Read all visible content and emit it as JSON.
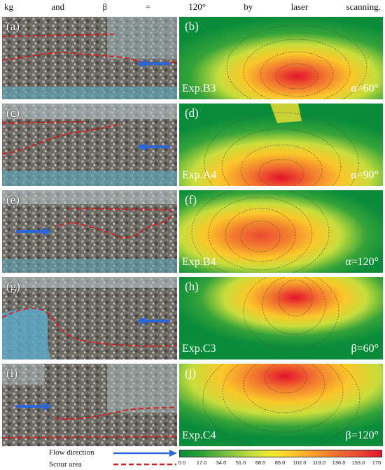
{
  "caption": [
    "kg",
    "and",
    "β",
    "=",
    "120°",
    "by",
    "laser",
    "scanning."
  ],
  "photos": [
    {
      "label": "(a)"
    },
    {
      "label": "(c)"
    },
    {
      "label": "(e)"
    },
    {
      "label": "(g)"
    },
    {
      "label": "(i)"
    }
  ],
  "contours": [
    {
      "label": "(b)",
      "experiment": "Exp.B3",
      "angle": "α=60°"
    },
    {
      "label": "(d)",
      "experiment": "Exp.A4",
      "angle": "α=90°"
    },
    {
      "label": "(f)",
      "experiment": "Exp.B4",
      "angle": "α=120°"
    },
    {
      "label": "(h)",
      "experiment": "Exp.C3",
      "angle": "β=60°"
    },
    {
      "label": "(j)",
      "experiment": "Exp.C4",
      "angle": "β=120°"
    }
  ],
  "legend": {
    "flow_direction": "Flow direction",
    "scour_area": "Scour area",
    "flow_color": "#2a66d8",
    "scour_color": "#d21f1f"
  },
  "colorbar": {
    "ticks": [
      "0.0",
      "17.0",
      "34.0",
      "51.0",
      "68.0",
      "85.0",
      "102.0",
      "119.0",
      "136.0",
      "153.0",
      "170"
    ],
    "low_color": "#0b8c3a",
    "high_color": "#e3122d"
  }
}
